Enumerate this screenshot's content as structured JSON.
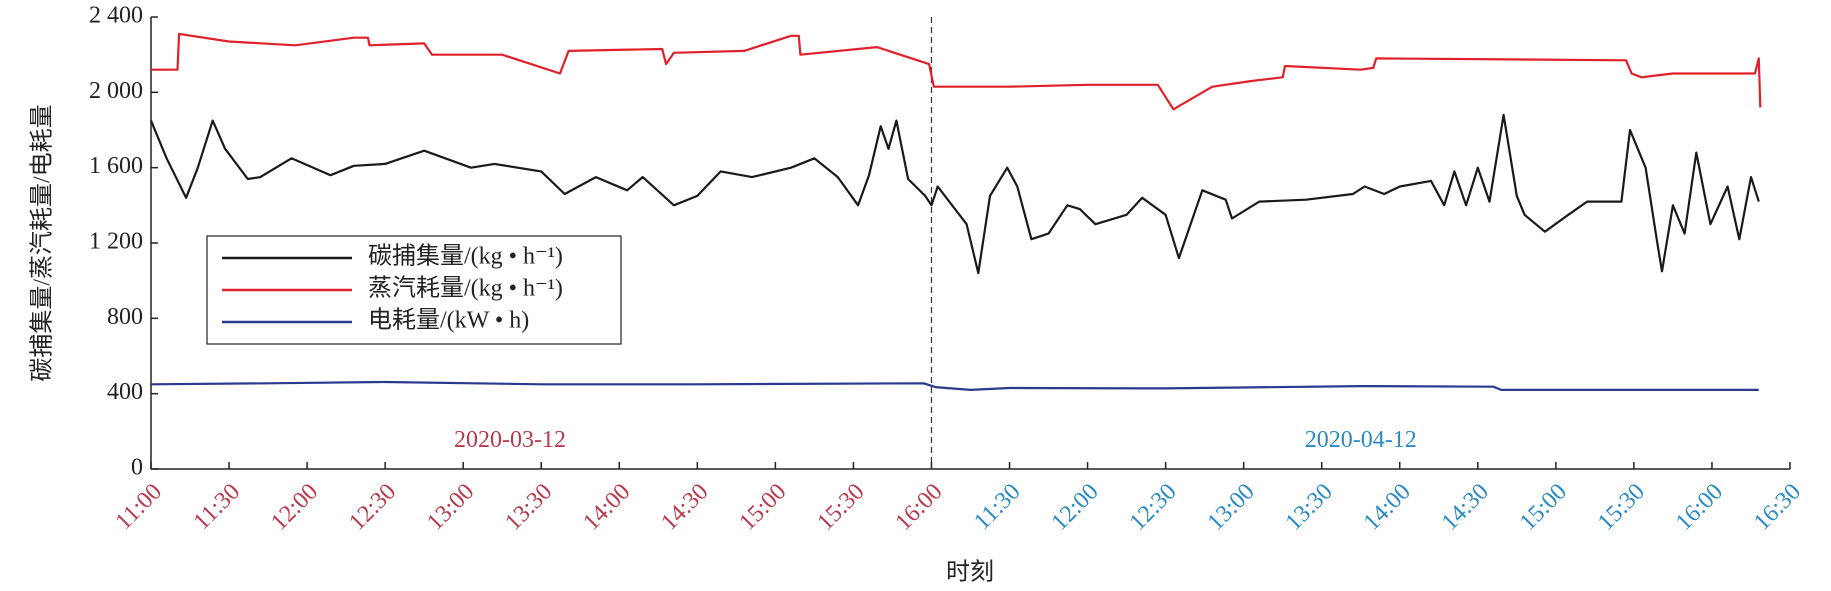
{
  "chart_data": {
    "type": "line",
    "ylabel": "碳捕集量/蒸汽耗量/电耗量",
    "xlabel": "时刻",
    "xlim": [
      0,
      21
    ],
    "ylim": [
      0,
      2400
    ],
    "yticks": [
      0,
      400,
      800,
      {
        "value": 1200,
        "label": "1 200"
      },
      {
        "value": 1600,
        "label": "1 600"
      },
      {
        "value": 2000,
        "label": "2 000"
      },
      {
        "value": 2400,
        "label": "2 400"
      }
    ],
    "xticks": [
      {
        "value": 0,
        "label": "11:00",
        "color": "#b83a4b"
      },
      {
        "value": 1,
        "label": "11:30",
        "color": "#b83a4b"
      },
      {
        "value": 2,
        "label": "12:00",
        "color": "#b83a4b"
      },
      {
        "value": 3,
        "label": "12:30",
        "color": "#b83a4b"
      },
      {
        "value": 4,
        "label": "13:00",
        "color": "#b83a4b"
      },
      {
        "value": 5,
        "label": "13:30",
        "color": "#b83a4b"
      },
      {
        "value": 6,
        "label": "14:00",
        "color": "#b83a4b"
      },
      {
        "value": 7,
        "label": "14:30",
        "color": "#b83a4b"
      },
      {
        "value": 8,
        "label": "15:00",
        "color": "#b83a4b"
      },
      {
        "value": 9,
        "label": "15:30",
        "color": "#b83a4b"
      },
      {
        "value": 10,
        "label": "16:00",
        "color": "#b83a4b"
      },
      {
        "value": 11,
        "label": "11:30",
        "color": "#2a8ac4"
      },
      {
        "value": 12,
        "label": "12:00",
        "color": "#2a8ac4"
      },
      {
        "value": 13,
        "label": "12:30",
        "color": "#2a8ac4"
      },
      {
        "value": 14,
        "label": "13:00",
        "color": "#2a8ac4"
      },
      {
        "value": 15,
        "label": "13:30",
        "color": "#2a8ac4"
      },
      {
        "value": 16,
        "label": "14:00",
        "color": "#2a8ac4"
      },
      {
        "value": 17,
        "label": "14:30",
        "color": "#2a8ac4"
      },
      {
        "value": 18,
        "label": "15:00",
        "color": "#2a8ac4"
      },
      {
        "value": 19,
        "label": "15:30",
        "color": "#2a8ac4"
      },
      {
        "value": 20,
        "label": "16:00",
        "color": "#2a8ac4"
      },
      {
        "value": 21,
        "label": "16:30",
        "color": "#2a8ac4"
      }
    ],
    "divider_x": 10,
    "annotations": [
      {
        "text": "2020-03-12",
        "x": 4.6,
        "y": 145,
        "color": "#b83a4b"
      },
      {
        "text": "2020-04-12",
        "x": 15.5,
        "y": 145,
        "color": "#2a8ac4"
      }
    ],
    "series": [
      {
        "name": "碳捕集量/(kg • h⁻¹)",
        "color": "#1a1a1a",
        "x": [
          0,
          0.2,
          0.45,
          0.6,
          0.79,
          0.95,
          1.24,
          1.4,
          1.8,
          2.3,
          2.6,
          3.0,
          3.5,
          4.1,
          4.4,
          5.0,
          5.3,
          5.7,
          6.1,
          6.3,
          6.7,
          7.0,
          7.3,
          7.7,
          8.2,
          8.5,
          8.8,
          9.06,
          9.2,
          9.35,
          9.45,
          9.55,
          9.7,
          9.92,
          10.0,
          10.08,
          10.45,
          10.6,
          10.75,
          10.97,
          11.1,
          11.28,
          11.5,
          11.74,
          11.9,
          12.1,
          12.5,
          12.7,
          13.0,
          13.17,
          13.47,
          13.77,
          13.85,
          14.2,
          14.8,
          15.4,
          15.55,
          15.8,
          16.0,
          16.4,
          16.57,
          16.7,
          16.85,
          17.0,
          17.15,
          17.33,
          17.5,
          17.6,
          17.86,
          18.16,
          18.4,
          18.84,
          18.95,
          19.15,
          19.3,
          19.36,
          19.5,
          19.65,
          19.8,
          19.98,
          20.2,
          20.35,
          20.5,
          20.6
        ],
        "values": [
          1850,
          1650,
          1440,
          1600,
          1850,
          1700,
          1540,
          1550,
          1650,
          1560,
          1610,
          1620,
          1690,
          1600,
          1620,
          1580,
          1460,
          1550,
          1480,
          1550,
          1400,
          1450,
          1580,
          1550,
          1600,
          1650,
          1550,
          1400,
          1560,
          1820,
          1700,
          1850,
          1540,
          1450,
          1400,
          1500,
          1300,
          1040,
          1450,
          1600,
          1500,
          1220,
          1250,
          1400,
          1380,
          1300,
          1350,
          1440,
          1350,
          1120,
          1480,
          1430,
          1330,
          1420,
          1430,
          1460,
          1500,
          1460,
          1500,
          1530,
          1400,
          1580,
          1400,
          1600,
          1420,
          1880,
          1450,
          1350,
          1260,
          1350,
          1420,
          1420,
          1800,
          1600,
          1200,
          1050,
          1400,
          1250,
          1680,
          1300,
          1500,
          1220,
          1550,
          1420
        ]
      },
      {
        "name": "蒸汽耗量/(kg • h⁻¹)",
        "color": "#e0202a",
        "x": [
          0,
          0.34,
          0.36,
          1.0,
          1.85,
          2.6,
          2.78,
          2.8,
          3.5,
          3.6,
          4.5,
          5.24,
          5.35,
          6.55,
          6.6,
          6.7,
          7.6,
          8.2,
          8.3,
          8.32,
          9.3,
          9.97,
          10.03,
          11,
          12,
          12.9,
          13.1,
          13.6,
          14.1,
          14.5,
          14.53,
          15.5,
          15.66,
          15.7,
          18.9,
          18.97,
          19.1,
          19.5,
          20.55,
          20.6,
          20.62
        ],
        "values": [
          2120,
          2120,
          2310,
          2270,
          2250,
          2290,
          2290,
          2250,
          2260,
          2200,
          2200,
          2100,
          2220,
          2230,
          2150,
          2210,
          2220,
          2300,
          2300,
          2200,
          2240,
          2150,
          2030,
          2030,
          2040,
          2040,
          1910,
          2030,
          2060,
          2080,
          2140,
          2120,
          2130,
          2180,
          2170,
          2100,
          2080,
          2100,
          2100,
          2180,
          1920
        ]
      },
      {
        "name": "电耗量/(kW • h)",
        "color": "#2b3990",
        "x": [
          0,
          1.5,
          3.0,
          5.0,
          7,
          9.9,
          10.05,
          10.5,
          11,
          13,
          15.5,
          17.2,
          17.3,
          20.6
        ],
        "values": [
          450,
          455,
          462,
          450,
          450,
          455,
          435,
          420,
          430,
          428,
          440,
          437,
          420,
          420
        ]
      }
    ]
  }
}
